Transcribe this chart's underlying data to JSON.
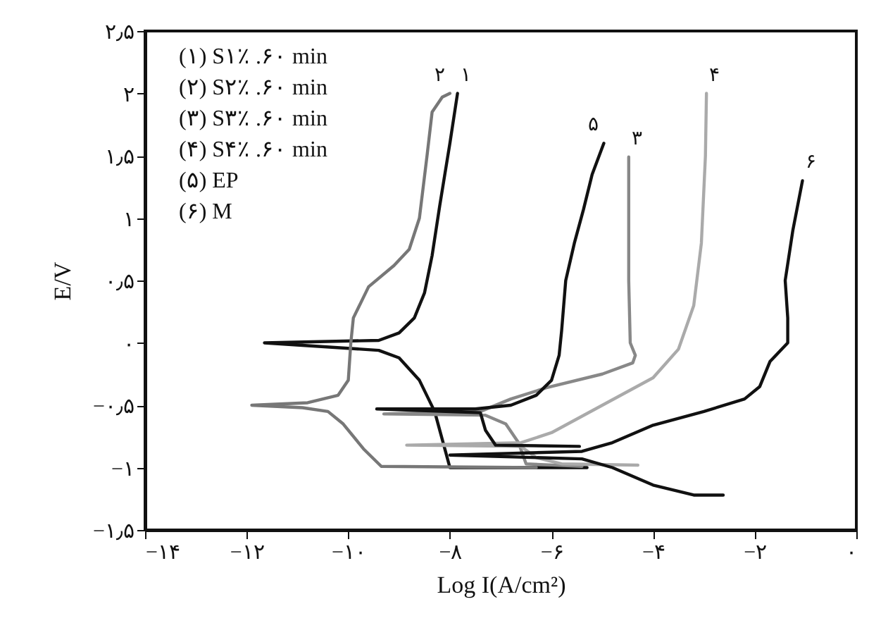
{
  "chart_data": {
    "type": "line",
    "xlabel": "Log I(A/cm²)",
    "ylabel": "E/V",
    "xlim": [
      -14,
      0
    ],
    "ylim": [
      -1.5,
      2.5
    ],
    "xticks": [
      {
        "value": -14,
        "label": "−۱۴"
      },
      {
        "value": -12,
        "label": "−۱۲"
      },
      {
        "value": -10,
        "label": "−۱۰"
      },
      {
        "value": -8,
        "label": "−۸"
      },
      {
        "value": -6,
        "label": "−۶"
      },
      {
        "value": -4,
        "label": "−۴"
      },
      {
        "value": -2,
        "label": "−۲"
      },
      {
        "value": 0,
        "label": "۰"
      }
    ],
    "yticks": [
      {
        "value": -1.5,
        "label": "−۱٫۵"
      },
      {
        "value": -1,
        "label": "−۱"
      },
      {
        "value": -0.5,
        "label": "−۰٫۵"
      },
      {
        "value": 0,
        "label": "۰"
      },
      {
        "value": 0.5,
        "label": "۰٫۵"
      },
      {
        "value": 1,
        "label": "۱"
      },
      {
        "value": 1.5,
        "label": "۱٫۵"
      },
      {
        "value": 2,
        "label": "۲"
      },
      {
        "value": 2.5,
        "label": "۲٫۵"
      }
    ],
    "grid": false,
    "marker": "none",
    "line_style": "solid",
    "series": [
      {
        "name": "۱",
        "color": "#111111",
        "x": [
          -5.3,
          -8.0,
          -8.1,
          -8.3,
          -8.6,
          -9.0,
          -9.4,
          -11.65,
          -9.4,
          -9.0,
          -8.7,
          -8.5,
          -8.35,
          -8.2,
          -8.0,
          -7.85
        ],
        "values": [
          -1.0,
          -1.0,
          -0.85,
          -0.55,
          -0.3,
          -0.12,
          -0.06,
          0,
          0.02,
          0.08,
          0.2,
          0.4,
          0.7,
          1.1,
          1.6,
          2.0
        ]
      },
      {
        "name": "۲",
        "color": "#777777",
        "x": [
          -6.3,
          -9.35,
          -9.7,
          -10.1,
          -10.4,
          -10.9,
          -11.9,
          -10.8,
          -10.2,
          -10.0,
          -9.95,
          -9.9,
          -9.6,
          -9.1,
          -8.8,
          -8.6,
          -8.45,
          -8.35,
          -8.15,
          -8.0
        ],
        "values": [
          -1.0,
          -0.99,
          -0.85,
          -0.65,
          -0.55,
          -0.52,
          -0.5,
          -0.48,
          -0.42,
          -0.3,
          0,
          0.2,
          0.45,
          0.62,
          0.75,
          1.0,
          1.5,
          1.85,
          1.97,
          2.0
        ]
      },
      {
        "name": "۳",
        "color": "#888888",
        "x": [
          -5.4,
          -6.5,
          -6.65,
          -6.9,
          -7.3,
          -9.3,
          -7.4,
          -6.8,
          -6.1,
          -5.0,
          -4.4,
          -4.35,
          -4.45,
          -4.48,
          -4.48,
          -4.48
        ],
        "values": [
          -0.99,
          -0.97,
          -0.8,
          -0.65,
          -0.58,
          -0.57,
          -0.55,
          -0.45,
          -0.36,
          -0.25,
          -0.16,
          -0.1,
          0,
          0.5,
          1.0,
          1.49
        ]
      },
      {
        "name": "۴",
        "color": "#aaaaaa",
        "x": [
          -4.3,
          -5.8,
          -6.3,
          -6.6,
          -8.85,
          -6.6,
          -6.0,
          -5.0,
          -4.0,
          -3.5,
          -3.2,
          -3.05,
          -2.97,
          -2.95
        ],
        "values": [
          -0.98,
          -0.97,
          -0.92,
          -0.83,
          -0.82,
          -0.8,
          -0.72,
          -0.5,
          -0.28,
          -0.05,
          0.3,
          0.8,
          1.5,
          2.0
        ]
      },
      {
        "name": "۵",
        "color": "#111111",
        "x": [
          -5.45,
          -7.1,
          -7.3,
          -7.4,
          -9.44,
          -7.5,
          -6.8,
          -6.3,
          -6.0,
          -5.85,
          -5.8,
          -5.72,
          -5.55,
          -5.37,
          -5.2,
          -4.97
        ],
        "values": [
          -0.83,
          -0.82,
          -0.7,
          -0.56,
          -0.53,
          -0.53,
          -0.5,
          -0.42,
          -0.3,
          -0.1,
          0.1,
          0.5,
          0.8,
          1.07,
          1.35,
          1.6
        ]
      },
      {
        "name": "۶",
        "color": "#111111",
        "x": [
          -2.62,
          -3.2,
          -4.0,
          -4.8,
          -5.4,
          -8.0,
          -5.4,
          -4.8,
          -4.0,
          -3.0,
          -2.2,
          -1.9,
          -1.75,
          -1.7,
          -1.35,
          -1.35,
          -1.4,
          -1.25,
          -1.06
        ],
        "values": [
          -1.22,
          -1.22,
          -1.14,
          -1.0,
          -0.93,
          -0.9,
          -0.87,
          -0.8,
          -0.66,
          -0.55,
          -0.45,
          -0.35,
          -0.2,
          -0.15,
          0,
          0.2,
          0.5,
          0.9,
          1.3
        ]
      }
    ],
    "annotations": [
      "(۱) S۱٪ .۶۰ min",
      "(۲) S۲٪ .۶۰ min",
      "(۳) S۳٪ .۶۰ min",
      "(۴) S۴٪ .۶۰ min",
      "(۵) EP",
      "(۶) M"
    ]
  }
}
